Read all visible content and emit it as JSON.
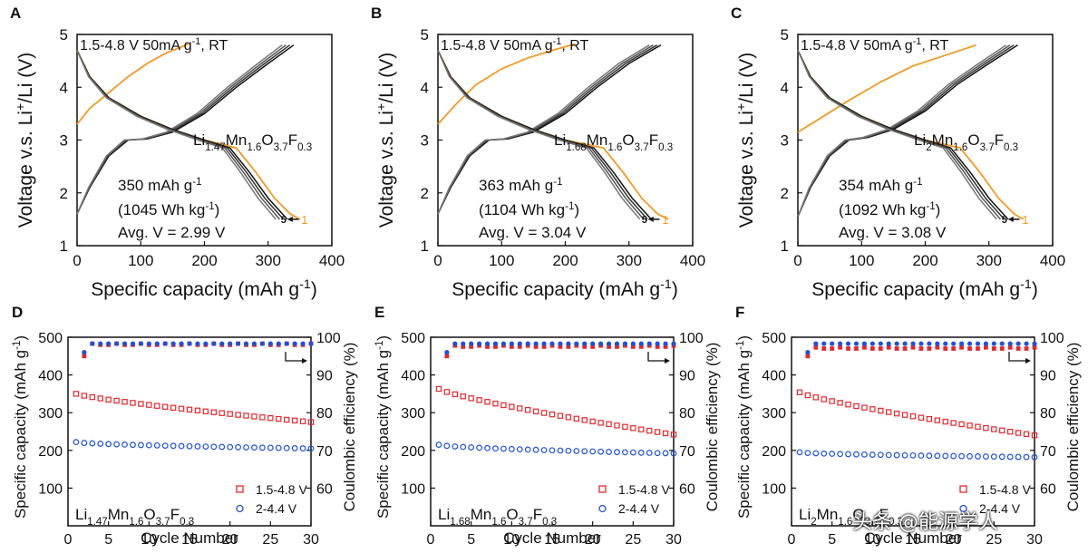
{
  "watermark": "头条 @能源学人",
  "colors": {
    "first_cycle": "#f39a1e",
    "later_cycles": "#2b2b2b",
    "high_voltage": "#e8262b",
    "low_voltage": "#1f4fe0"
  },
  "chart_data": [
    {
      "panel": "A",
      "type": "line",
      "xlabel": "Specific capacity (mAh g-1)",
      "ylabel": "Voltage v.s. Li+/Li (V)",
      "xlim": [
        0,
        400
      ],
      "ylim": [
        1,
        5
      ],
      "xticks": [
        0,
        100,
        200,
        300,
        400
      ],
      "yticks": [
        1,
        2,
        3,
        4,
        5
      ],
      "condition": "1.5-4.8 V 50mA g-1, RT",
      "compound": {
        "base": "Li",
        "li": "1.47",
        "mn": "1.6",
        "o": "3.7",
        "f": "0.3"
      },
      "capacity_text": "350 mAh g-1",
      "energy_text": "(1045 Wh kg-1)",
      "avg_voltage": "Avg. V = 2.99 V",
      "cycle_labels": {
        "last": "5",
        "first": "1"
      },
      "series": [
        {
          "name": "cycle 1 charge",
          "x": [
            0,
            20,
            50,
            80,
            110,
            140,
            175
          ],
          "y": [
            3.3,
            3.6,
            3.9,
            4.2,
            4.45,
            4.65,
            4.82
          ]
        },
        {
          "name": "cycle 1 discharge",
          "x": [
            0,
            20,
            50,
            100,
            150,
            200,
            250,
            280,
            310,
            335,
            350
          ],
          "y": [
            4.7,
            4.2,
            3.8,
            3.45,
            3.2,
            3.0,
            2.85,
            2.4,
            1.9,
            1.6,
            1.5
          ]
        },
        {
          "name": "cycles 2-5 charge",
          "x": [
            0,
            20,
            50,
            80,
            110,
            150,
            200,
            250,
            300,
            340
          ],
          "y": [
            1.6,
            2.1,
            2.7,
            3.0,
            3.02,
            3.15,
            3.5,
            4.0,
            4.45,
            4.8
          ]
        },
        {
          "name": "cycles 2-5 discharge",
          "x": [
            0,
            20,
            50,
            100,
            150,
            200,
            240,
            270,
            300,
            330
          ],
          "y": [
            4.7,
            4.2,
            3.8,
            3.45,
            3.2,
            3.0,
            2.85,
            2.4,
            1.9,
            1.5
          ]
        }
      ]
    },
    {
      "panel": "B",
      "type": "line",
      "xlabel": "Specific capacity (mAh g-1)",
      "ylabel": "Voltage v.s. Li+/Li (V)",
      "xlim": [
        0,
        400
      ],
      "ylim": [
        1,
        5
      ],
      "xticks": [
        0,
        100,
        200,
        300,
        400
      ],
      "yticks": [
        1,
        2,
        3,
        4,
        5
      ],
      "condition": "1.5-4.8 V 50mA g-1, RT",
      "compound": {
        "base": "Li",
        "li": "1.68",
        "mn": "1.6",
        "o": "3.7",
        "f": "0.3"
      },
      "capacity_text": "363 mAh g-1",
      "energy_text": "(1104 Wh kg-1)",
      "avg_voltage": "Avg. V = 3.04 V",
      "cycle_labels": {
        "last": "5",
        "first": "1"
      },
      "series": [
        {
          "name": "cycle 1 charge",
          "x": [
            0,
            30,
            60,
            100,
            140,
            180,
            215
          ],
          "y": [
            3.3,
            3.7,
            4.05,
            4.35,
            4.55,
            4.7,
            4.82
          ]
        },
        {
          "name": "cycle 1 discharge",
          "x": [
            0,
            20,
            50,
            100,
            150,
            200,
            260,
            290,
            320,
            345,
            362
          ],
          "y": [
            4.7,
            4.2,
            3.8,
            3.45,
            3.2,
            3.0,
            2.85,
            2.4,
            1.9,
            1.6,
            1.5
          ]
        },
        {
          "name": "cycles 2-5 charge",
          "x": [
            0,
            20,
            50,
            80,
            110,
            150,
            200,
            250,
            300,
            350
          ],
          "y": [
            1.6,
            2.1,
            2.7,
            3.0,
            3.02,
            3.15,
            3.5,
            4.0,
            4.45,
            4.8
          ]
        },
        {
          "name": "cycles 2-5 discharge",
          "x": [
            0,
            20,
            50,
            100,
            150,
            200,
            245,
            275,
            305,
            335
          ],
          "y": [
            4.7,
            4.2,
            3.8,
            3.45,
            3.2,
            3.0,
            2.85,
            2.4,
            1.9,
            1.5
          ]
        }
      ]
    },
    {
      "panel": "C",
      "type": "line",
      "xlabel": "Specific capacity (mAh g-1)",
      "ylabel": "Voltage v.s. Li+/Li (V)",
      "xlim": [
        0,
        400
      ],
      "ylim": [
        1,
        5
      ],
      "xticks": [
        0,
        100,
        200,
        300,
        400
      ],
      "yticks": [
        1,
        2,
        3,
        4,
        5
      ],
      "condition": "1.5-4.8 V 50mA g-1, RT",
      "compound": {
        "base": "Li",
        "li": "2",
        "mn": "1.6",
        "o": "3.7",
        "f": "0.3"
      },
      "capacity_text": "354 mAh g-1",
      "energy_text": "(1092 Wh kg-1)",
      "avg_voltage": "Avg. V = 3.08 V",
      "cycle_labels": {
        "last": "5",
        "first": "1"
      },
      "series": [
        {
          "name": "cycle 1 charge",
          "x": [
            0,
            40,
            80,
            130,
            180,
            230,
            280
          ],
          "y": [
            3.15,
            3.45,
            3.75,
            4.1,
            4.4,
            4.6,
            4.8
          ]
        },
        {
          "name": "cycle 1 discharge",
          "x": [
            0,
            20,
            50,
            100,
            150,
            200,
            255,
            285,
            315,
            340,
            354
          ],
          "y": [
            4.7,
            4.2,
            3.8,
            3.45,
            3.2,
            3.0,
            2.85,
            2.4,
            1.9,
            1.6,
            1.5
          ]
        },
        {
          "name": "cycles 2-5 charge",
          "x": [
            0,
            20,
            50,
            80,
            110,
            150,
            200,
            250,
            300,
            345
          ],
          "y": [
            1.55,
            2.1,
            2.7,
            3.0,
            3.05,
            3.2,
            3.55,
            4.05,
            4.45,
            4.8
          ]
        },
        {
          "name": "cycles 2-5 discharge",
          "x": [
            0,
            20,
            50,
            100,
            150,
            200,
            240,
            270,
            300,
            330
          ],
          "y": [
            4.7,
            4.2,
            3.8,
            3.45,
            3.2,
            3.0,
            2.85,
            2.4,
            1.9,
            1.5
          ]
        }
      ]
    },
    {
      "panel": "D",
      "type": "scatter",
      "xlabel": "Cycle Number",
      "ylabel": "Specific capacity (mAh g-1)",
      "ylabel_right": "Coulombic efficiency (%)",
      "xlim": [
        0,
        30
      ],
      "ylim": [
        0,
        500
      ],
      "ylim_right": [
        50,
        100
      ],
      "xticks": [
        0,
        5,
        10,
        15,
        20,
        25,
        30
      ],
      "yticks": [
        100,
        200,
        300,
        400,
        500
      ],
      "yticks_right": [
        60,
        70,
        80,
        90,
        100
      ],
      "compound": {
        "base": "Li",
        "li": "1.47",
        "mn": "1.6",
        "o": "3.7",
        "f": "0.3"
      },
      "legend": [
        "1.5-4.8 V",
        "2-4.4 V"
      ],
      "capacity_high": {
        "start": 350,
        "end": 275
      },
      "capacity_low": {
        "start": 222,
        "end": 205
      },
      "ce_high": {
        "first": 95,
        "plateau": 98
      },
      "ce_low": {
        "first": 96,
        "plateau": 98.3
      }
    },
    {
      "panel": "E",
      "type": "scatter",
      "xlabel": "Cycle Number",
      "ylabel": "Specific capacity (mAh g-1)",
      "ylabel_right": "Coulombic efficiency (%)",
      "xlim": [
        0,
        30
      ],
      "ylim": [
        0,
        500
      ],
      "ylim_right": [
        50,
        100
      ],
      "xticks": [
        0,
        5,
        10,
        15,
        20,
        25,
        30
      ],
      "yticks": [
        100,
        200,
        300,
        400,
        500
      ],
      "yticks_right": [
        60,
        70,
        80,
        90,
        100
      ],
      "compound": {
        "base": "Li",
        "li": "1.68",
        "mn": "1.6",
        "o": "3.7",
        "f": "0.3"
      },
      "legend": [
        "1.5-4.8 V",
        "2-4.4 V"
      ],
      "capacity_high": {
        "start": 363,
        "end": 242
      },
      "capacity_low": {
        "start": 215,
        "end": 192
      },
      "ce_high": {
        "first": 95,
        "plateau": 97.5
      },
      "ce_low": {
        "first": 96,
        "plateau": 98.3
      }
    },
    {
      "panel": "F",
      "type": "scatter",
      "xlabel": "Cycle Number",
      "ylabel": "Specific capacity (mAh g-1)",
      "ylabel_right": "Coulombic efficiency (%)",
      "xlim": [
        0,
        30
      ],
      "ylim": [
        0,
        500
      ],
      "ylim_right": [
        50,
        100
      ],
      "xticks": [
        0,
        5,
        10,
        15,
        20,
        25,
        30
      ],
      "yticks": [
        100,
        200,
        300,
        400,
        500
      ],
      "yticks_right": [
        60,
        70,
        80,
        90,
        100
      ],
      "compound": {
        "base": "Li",
        "li": "2",
        "mn": "1.6",
        "o": "3.7",
        "f": "0.3"
      },
      "legend": [
        "1.5-4.8 V",
        "2-4.4 V"
      ],
      "capacity_high": {
        "start": 354,
        "end": 240
      },
      "capacity_low": {
        "start": 195,
        "end": 182
      },
      "ce_high": {
        "first": 95,
        "plateau": 97
      },
      "ce_low": {
        "first": 96,
        "plateau": 98.3
      }
    }
  ]
}
